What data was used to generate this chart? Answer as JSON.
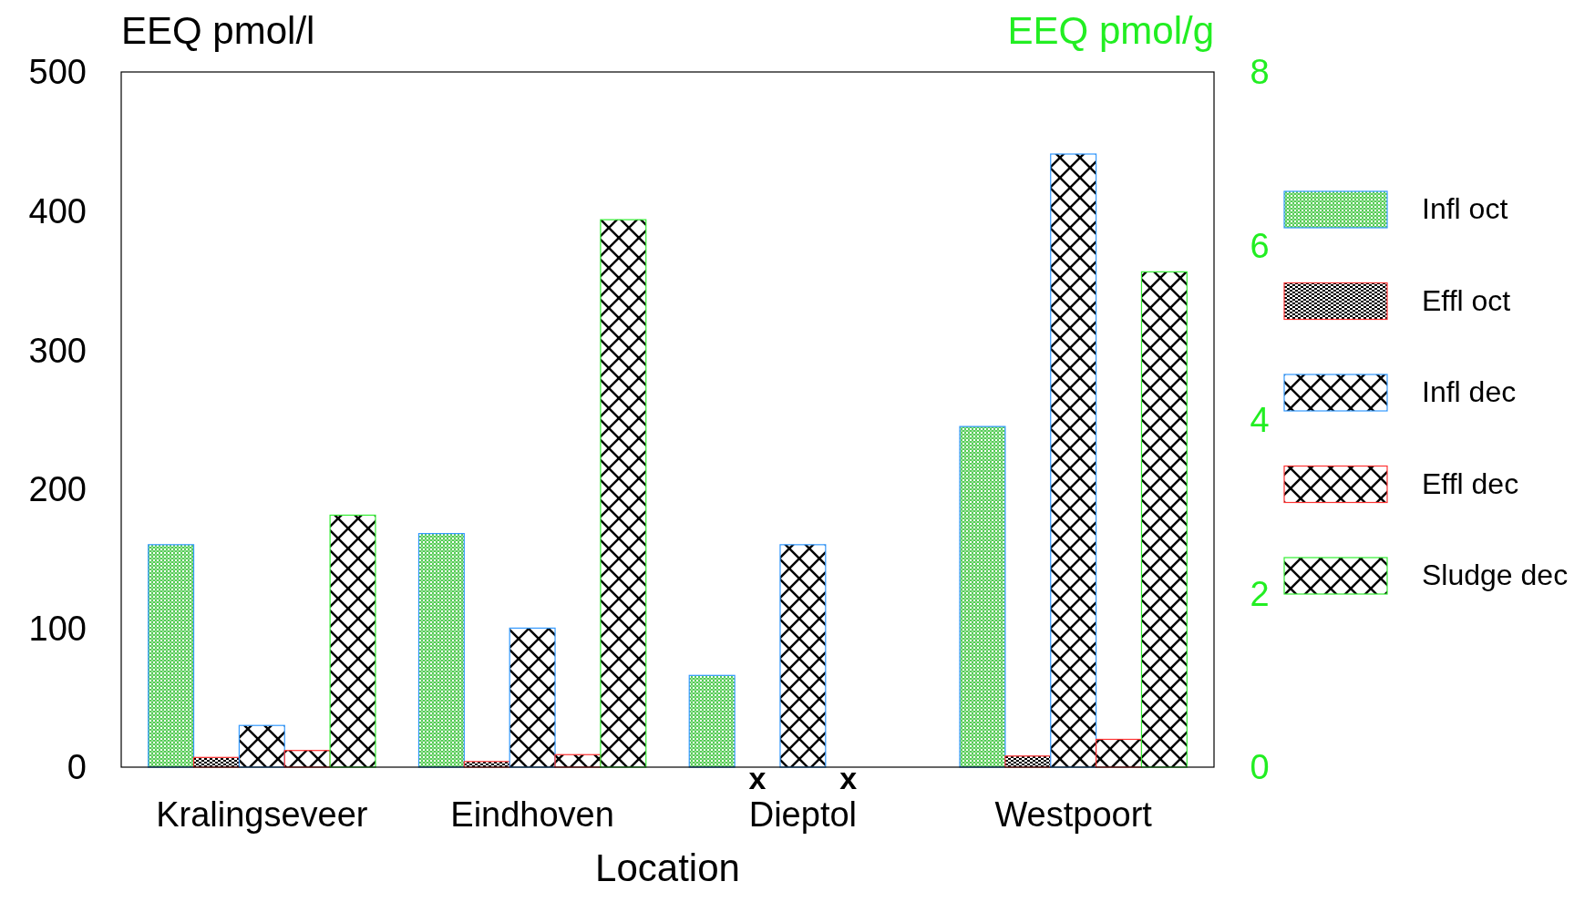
{
  "chart_data": {
    "type": "bar",
    "xlabel": "Location",
    "ylabel": "EEQ pmol/l",
    "y2label": "EEQ pmol/g",
    "categories": [
      "Kralingseveer",
      "Eindhoven",
      "Dieptol",
      "Westpoort"
    ],
    "ylim": [
      0,
      500
    ],
    "yticks": [
      0,
      100,
      200,
      300,
      400,
      500
    ],
    "y2lim": [
      0,
      8
    ],
    "y2ticks": [
      0,
      2,
      4,
      6,
      8
    ],
    "legend": "right",
    "grid": false,
    "series": [
      {
        "name": "Infl oct",
        "color": "#3399ff",
        "values": [
          160,
          168,
          66,
          245
        ]
      },
      {
        "name": "Effl oct",
        "color": "#ff3333",
        "values": [
          7,
          4,
          null,
          8
        ],
        "value_labels": [
          null,
          null,
          "x",
          null
        ]
      },
      {
        "name": "Infl dec",
        "color": "#3399ff",
        "values": [
          30,
          100,
          160,
          441
        ]
      },
      {
        "name": "Effl dec",
        "color": "#ff3333",
        "values": [
          12,
          9,
          null,
          20
        ],
        "value_labels": [
          null,
          null,
          "x",
          null
        ]
      },
      {
        "name": "Sludge dec",
        "color": "#33ee33",
        "axis": "y2",
        "values": [
          2.9,
          6.3,
          null,
          5.7
        ]
      }
    ]
  }
}
